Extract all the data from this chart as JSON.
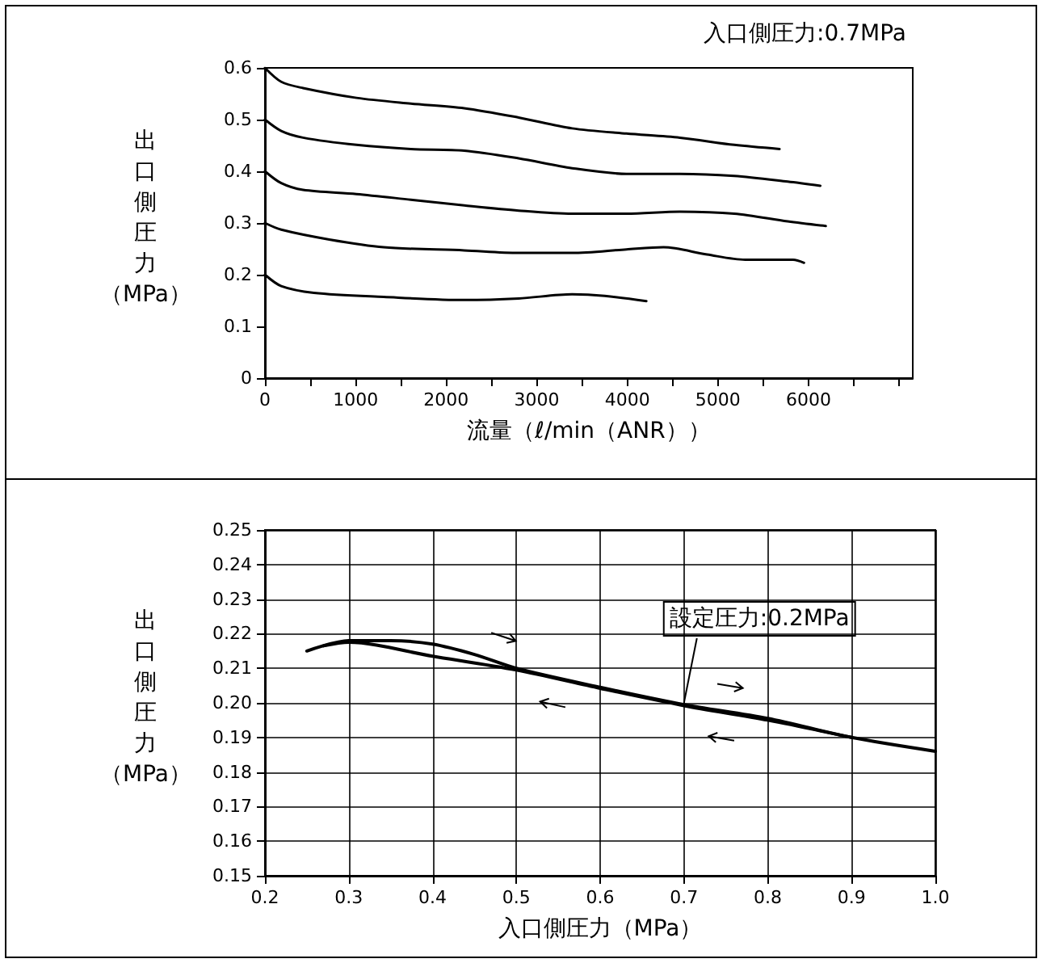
{
  "chart_data": [
    {
      "type": "line",
      "xlabel": "流量（ℓ/min（ANR））",
      "ylabel": "出口側圧力（MPa）",
      "annotations": [
        "入口側圧力:0.7MPa"
      ],
      "xlim": [
        0,
        7150
      ],
      "ylim": [
        0,
        0.6
      ],
      "xticks": [
        0,
        {
          "value": 500,
          "label": null
        },
        1000,
        {
          "value": 1500,
          "label": null
        },
        2000,
        {
          "value": 2500,
          "label": null
        },
        3000,
        {
          "value": 3500,
          "label": null
        },
        4000,
        {
          "value": 4500,
          "label": null
        },
        5000,
        {
          "value": 5500,
          "label": null
        },
        6000,
        {
          "value": 6500,
          "label": null
        },
        {
          "value": 7000,
          "label": null
        }
      ],
      "yticks": [
        0,
        0.1,
        0.2,
        0.3,
        0.4,
        0.5,
        0.6
      ],
      "grid": false,
      "marker": "none",
      "line_style": "solid",
      "series": [
        {
          "color": "#000000",
          "x": [
            0,
            180,
            420,
            1010,
            1610,
            2200,
            2800,
            3390,
            3990,
            4580,
            5180,
            5680
          ],
          "values": [
            0.6,
            0.573,
            0.561,
            0.542,
            0.531,
            0.522,
            0.504,
            0.483,
            0.473,
            0.465,
            0.451,
            0.443
          ]
        },
        {
          "color": "#000000",
          "x": [
            0,
            180,
            420,
            1010,
            1610,
            2200,
            2800,
            3390,
            3990,
            4580,
            5180,
            5770,
            6130
          ],
          "values": [
            0.5,
            0.478,
            0.465,
            0.451,
            0.443,
            0.44,
            0.425,
            0.406,
            0.395,
            0.395,
            0.391,
            0.38,
            0.372
          ]
        },
        {
          "color": "#000000",
          "x": [
            0,
            180,
            420,
            1010,
            1610,
            2200,
            2800,
            3390,
            3990,
            4580,
            5180,
            5770,
            6190
          ],
          "values": [
            0.4,
            0.377,
            0.364,
            0.356,
            0.345,
            0.334,
            0.324,
            0.318,
            0.318,
            0.322,
            0.318,
            0.303,
            0.294
          ]
        },
        {
          "color": "#000000",
          "x": [
            0,
            180,
            710,
            1310,
            2200,
            2800,
            3390,
            3990,
            4400,
            4880,
            5300,
            5830,
            5950
          ],
          "values": [
            0.3,
            0.287,
            0.268,
            0.253,
            0.247,
            0.242,
            0.242,
            0.249,
            0.253,
            0.239,
            0.229,
            0.229,
            0.223
          ]
        },
        {
          "color": "#000000",
          "x": [
            0,
            180,
            540,
            1310,
            2200,
            2800,
            3390,
            3750,
            4210
          ],
          "values": [
            0.2,
            0.178,
            0.165,
            0.157,
            0.151,
            0.154,
            0.162,
            0.159,
            0.149
          ]
        }
      ]
    },
    {
      "type": "line",
      "xlabel": "入口側圧力（MPa）",
      "ylabel": "出口側圧力（MPa）",
      "annotations": [
        {
          "text": "設定圧力:0.2MPa",
          "x": 0.7,
          "y": 0.2
        }
      ],
      "xlim": [
        0.2,
        1.0
      ],
      "ylim": [
        0.15,
        0.25
      ],
      "xticks": [
        0.2,
        0.3,
        0.4,
        0.5,
        0.6,
        0.7,
        0.8,
        0.9,
        {
          "value": 1.0,
          "label": "1.0"
        }
      ],
      "yticks": [
        0.15,
        0.16,
        0.17,
        0.18,
        0.19,
        {
          "value": 0.2,
          "label": "0.20"
        },
        0.21,
        0.22,
        0.23,
        0.24,
        0.25
      ],
      "grid": true,
      "marker": "none",
      "line_style": "solid",
      "series": [
        {
          "color": "#000000",
          "x": [
            0.25,
            0.3,
            0.35,
            0.4,
            0.45,
            0.5,
            0.6,
            0.7,
            0.8,
            0.9,
            1.0
          ],
          "values": [
            0.215,
            0.218,
            0.218,
            0.217,
            0.214,
            0.21,
            0.2045,
            0.1995,
            0.1955,
            0.19,
            0.186
          ]
        },
        {
          "color": "#000000",
          "x": [
            0.27,
            0.3,
            0.4,
            0.5,
            0.6,
            0.7,
            0.8,
            0.9
          ],
          "values": [
            0.2165,
            0.2175,
            0.2135,
            0.2095,
            0.2042,
            0.1992,
            0.195,
            0.19
          ]
        }
      ]
    }
  ]
}
